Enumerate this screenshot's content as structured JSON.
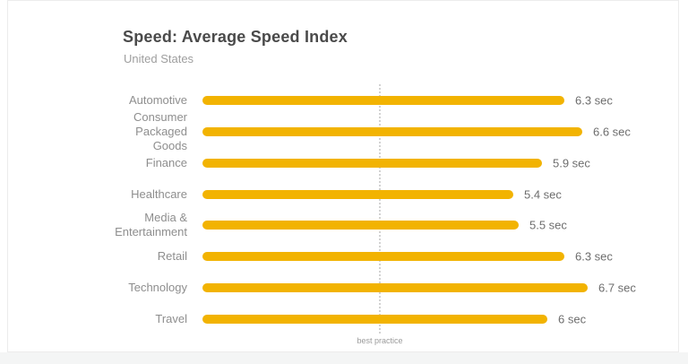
{
  "page": {
    "background_color": "#ffffff",
    "card_background": "#ffffff",
    "card_border_color": "#ececec",
    "bottom_strip_color": "#f4f5f5"
  },
  "chart_data": {
    "type": "bar",
    "orientation": "horizontal",
    "title": "Speed: Average Speed Index",
    "subtitle": "United States",
    "unit": "sec",
    "categories": [
      "Automotive",
      "Consumer Packaged Goods",
      "Finance",
      "Healthcare",
      "Media & Entertainment",
      "Retail",
      "Technology",
      "Travel"
    ],
    "values": [
      6.3,
      6.6,
      5.9,
      5.4,
      5.5,
      6.3,
      6.7,
      6
    ],
    "value_labels": [
      "6.3 sec",
      "6.6 sec",
      "5.9 sec",
      "5.4 sec",
      "5.5 sec",
      "6.3 sec",
      "6.7 sec",
      "6 sec"
    ],
    "bar_color": "#F2B301",
    "reference_line": {
      "label": "best practice",
      "value": 3.1
    },
    "xlim": [
      0,
      8.4
    ],
    "grid": "off",
    "legend": "none"
  }
}
